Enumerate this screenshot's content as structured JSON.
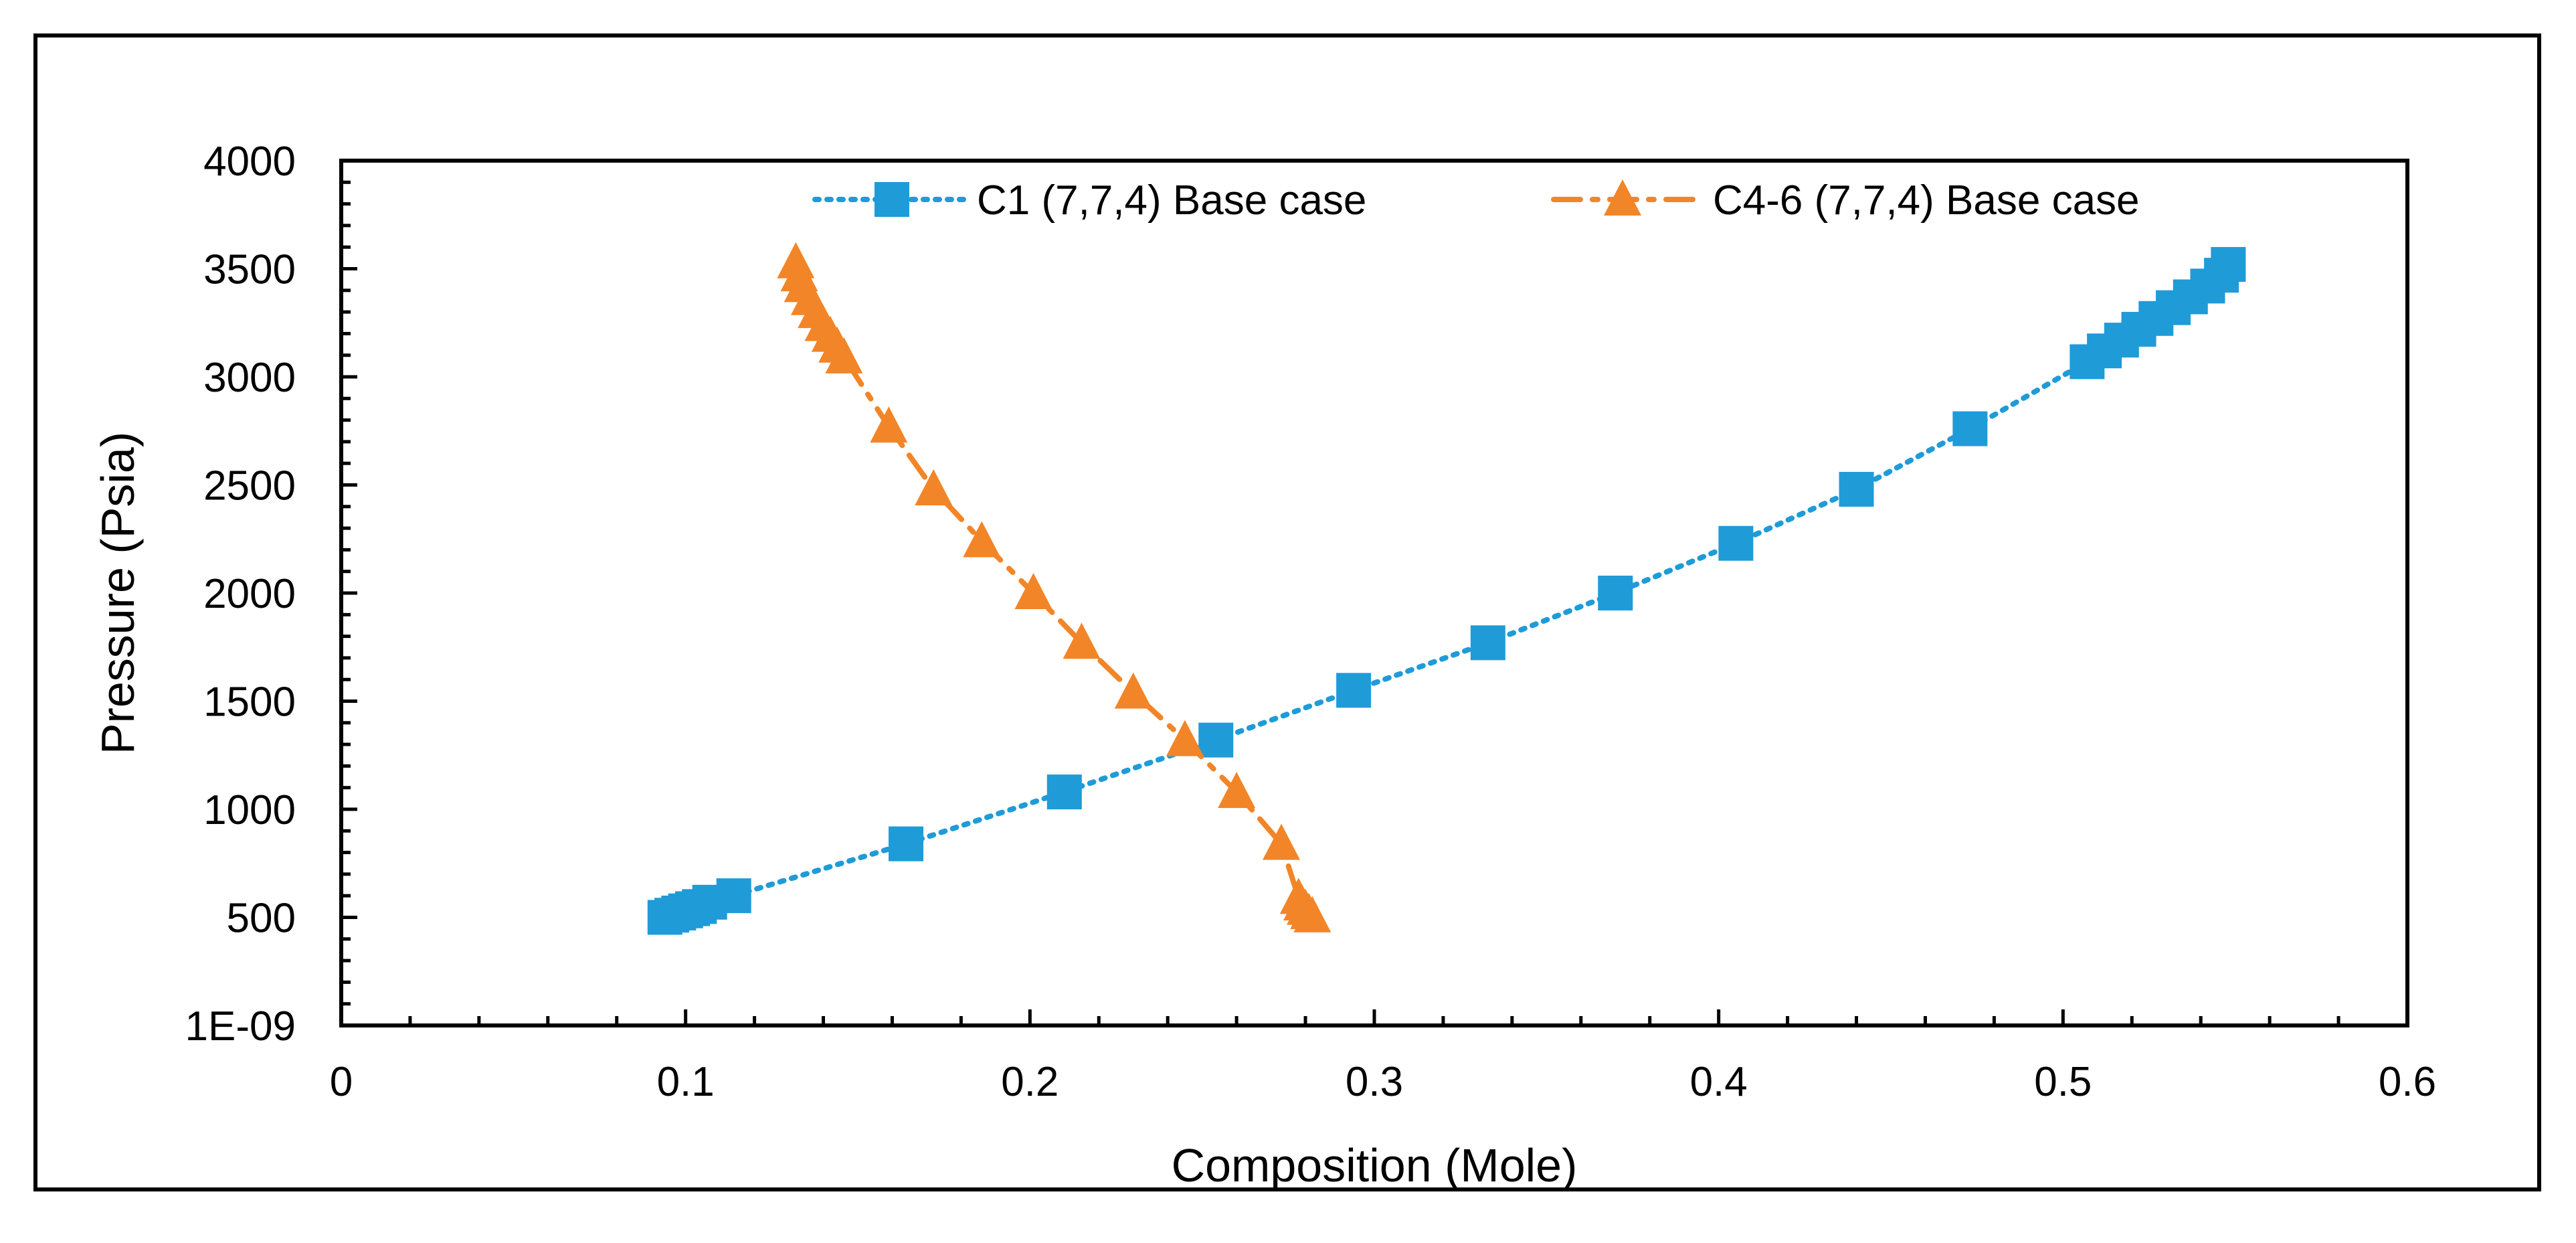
{
  "chart_data": {
    "type": "scatter",
    "title": "",
    "xlabel": "Composition (Mole)",
    "ylabel": "Pressure (Psia)",
    "xlim": [
      0,
      0.6
    ],
    "ylim": [
      0,
      4000
    ],
    "x_ticks": [
      {
        "value": 0,
        "label": "0"
      },
      {
        "value": 0.1,
        "label": "0.1"
      },
      {
        "value": 0.2,
        "label": "0.2"
      },
      {
        "value": 0.3,
        "label": "0.3"
      },
      {
        "value": 0.4,
        "label": "0.4"
      },
      {
        "value": 0.5,
        "label": "0.5"
      },
      {
        "value": 0.6,
        "label": "0.6"
      }
    ],
    "y_ticks": [
      {
        "value": 0,
        "label": "1E-09"
      },
      {
        "value": 500,
        "label": "500"
      },
      {
        "value": 1000,
        "label": "1000"
      },
      {
        "value": 1500,
        "label": "1500"
      },
      {
        "value": 2000,
        "label": "2000"
      },
      {
        "value": 2500,
        "label": "2500"
      },
      {
        "value": 3000,
        "label": "3000"
      },
      {
        "value": 3500,
        "label": "3500"
      },
      {
        "value": 4000,
        "label": "4000"
      }
    ],
    "grid": false,
    "legend_position": "top",
    "series": [
      {
        "name": "C1 (7,7,4) Base case",
        "color": "#1f9bd8",
        "marker": "square",
        "line_style": "dotted",
        "points": [
          [
            0.094,
            500
          ],
          [
            0.096,
            510
          ],
          [
            0.098,
            520
          ],
          [
            0.1,
            530
          ],
          [
            0.102,
            540
          ],
          [
            0.104,
            550
          ],
          [
            0.107,
            570
          ],
          [
            0.114,
            600
          ],
          [
            0.164,
            840
          ],
          [
            0.21,
            1080
          ],
          [
            0.254,
            1320
          ],
          [
            0.294,
            1550
          ],
          [
            0.333,
            1770
          ],
          [
            0.37,
            2000
          ],
          [
            0.405,
            2230
          ],
          [
            0.44,
            2480
          ],
          [
            0.473,
            2760
          ],
          [
            0.507,
            3070
          ],
          [
            0.512,
            3120
          ],
          [
            0.517,
            3170
          ],
          [
            0.522,
            3220
          ],
          [
            0.527,
            3270
          ],
          [
            0.532,
            3320
          ],
          [
            0.537,
            3370
          ],
          [
            0.542,
            3420
          ],
          [
            0.546,
            3470
          ],
          [
            0.548,
            3520
          ]
        ]
      },
      {
        "name": "C4-6 (7,7,4) Base case",
        "color": "#f28527",
        "marker": "triangle",
        "line_style": "dash-dot",
        "points": [
          [
            0.132,
            3530
          ],
          [
            0.133,
            3470
          ],
          [
            0.134,
            3420
          ],
          [
            0.136,
            3360
          ],
          [
            0.138,
            3300
          ],
          [
            0.14,
            3240
          ],
          [
            0.142,
            3190
          ],
          [
            0.144,
            3140
          ],
          [
            0.146,
            3090
          ],
          [
            0.159,
            2770
          ],
          [
            0.172,
            2480
          ],
          [
            0.186,
            2240
          ],
          [
            0.201,
            2000
          ],
          [
            0.215,
            1770
          ],
          [
            0.23,
            1540
          ],
          [
            0.245,
            1320
          ],
          [
            0.26,
            1080
          ],
          [
            0.273,
            840
          ],
          [
            0.278,
            590
          ],
          [
            0.279,
            560
          ],
          [
            0.28,
            540
          ],
          [
            0.281,
            520
          ],
          [
            0.282,
            505
          ]
        ]
      }
    ]
  }
}
